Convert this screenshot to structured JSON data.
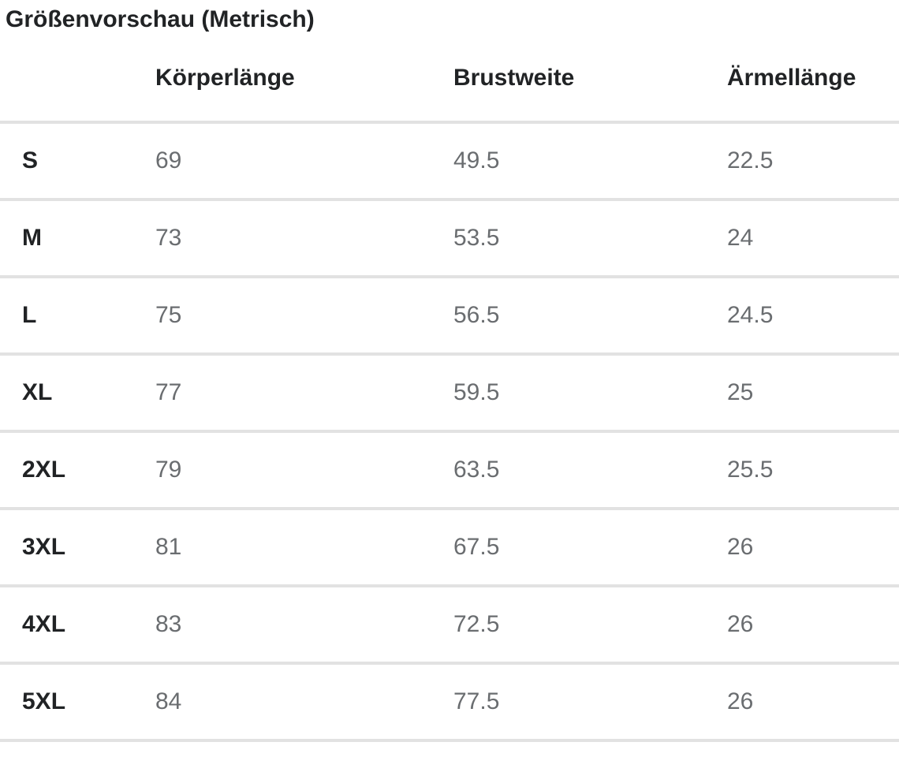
{
  "page": {
    "title": "Größenvorschau (Metrisch)"
  },
  "table": {
    "columns": [
      "Körperlänge",
      "Brustweite",
      "Ärmellänge"
    ],
    "rows": [
      {
        "size": "S",
        "koerperlaenge": "69",
        "brustweite": "49.5",
        "aermellaenge": "22.5"
      },
      {
        "size": "M",
        "koerperlaenge": "73",
        "brustweite": "53.5",
        "aermellaenge": "24"
      },
      {
        "size": "L",
        "koerperlaenge": "75",
        "brustweite": "56.5",
        "aermellaenge": "24.5"
      },
      {
        "size": "XL",
        "koerperlaenge": "77",
        "brustweite": "59.5",
        "aermellaenge": "25"
      },
      {
        "size": "2XL",
        "koerperlaenge": "79",
        "brustweite": "63.5",
        "aermellaenge": "25.5"
      },
      {
        "size": "3XL",
        "koerperlaenge": "81",
        "brustweite": "67.5",
        "aermellaenge": "26"
      },
      {
        "size": "4XL",
        "koerperlaenge": "83",
        "brustweite": "72.5",
        "aermellaenge": "26"
      },
      {
        "size": "5XL",
        "koerperlaenge": "84",
        "brustweite": "77.5",
        "aermellaenge": "26"
      }
    ]
  },
  "colors": {
    "heading_text": "#212325",
    "value_text": "#6a6d70",
    "divider": "#e2e2e2",
    "background": "#ffffff"
  }
}
